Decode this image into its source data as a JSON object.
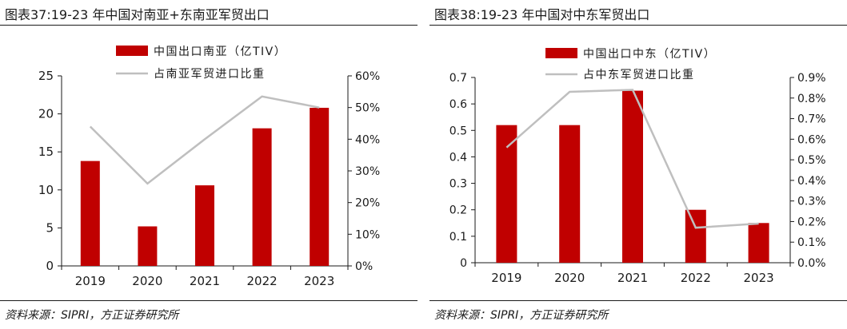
{
  "colors": {
    "bar": "#c00000",
    "line": "#bfbfbf",
    "axis": "#1a1a1a"
  },
  "left": {
    "title": "图表37:19-23 年中国对南亚+东南亚军贸出口",
    "source": "资料来源：SIPRI，方正证券研究所"
  },
  "right": {
    "title": "图表38:19-23 年中国对中东军贸出口",
    "source": "资料来源：SIPRI，方正证券研究所"
  },
  "chart_data": [
    {
      "type": "bar",
      "categories": [
        "2019",
        "2020",
        "2021",
        "2022",
        "2023"
      ],
      "series": [
        {
          "name": "中国出口南亚（亿TIV）",
          "type": "bar",
          "axis": "left",
          "values": [
            13.8,
            5.2,
            10.6,
            18.1,
            20.8
          ]
        },
        {
          "name": "占南亚军贸进口比重",
          "type": "line",
          "axis": "right",
          "values": [
            44,
            26,
            40,
            53.5,
            50
          ]
        }
      ],
      "y_left": {
        "min": 0,
        "max": 25,
        "ticks": [
          "0",
          "5",
          "10",
          "15",
          "20",
          "25"
        ]
      },
      "y_right": {
        "min": 0,
        "max": 60,
        "ticks": [
          "0%",
          "10%",
          "20%",
          "30%",
          "40%",
          "50%",
          "60%"
        ]
      },
      "legend_position": "top-center",
      "grid": false
    },
    {
      "type": "bar",
      "categories": [
        "2019",
        "2020",
        "2021",
        "2022",
        "2023"
      ],
      "series": [
        {
          "name": "中国出口中东（亿TIV）",
          "type": "bar",
          "axis": "left",
          "values": [
            0.52,
            0.52,
            0.65,
            0.2,
            0.15
          ]
        },
        {
          "name": "占中东军贸进口比重",
          "type": "line",
          "axis": "right",
          "values": [
            0.56,
            0.83,
            0.84,
            0.17,
            0.19
          ]
        }
      ],
      "y_left": {
        "min": 0,
        "max": 0.7,
        "ticks": [
          "0",
          "0.1",
          "0.2",
          "0.3",
          "0.4",
          "0.5",
          "0.6",
          "0.7"
        ]
      },
      "y_right": {
        "min": 0,
        "max": 0.9,
        "ticks": [
          "0.0%",
          "0.1%",
          "0.2%",
          "0.3%",
          "0.4%",
          "0.5%",
          "0.6%",
          "0.7%",
          "0.8%",
          "0.9%"
        ]
      },
      "legend_position": "top-center",
      "grid": false
    }
  ]
}
